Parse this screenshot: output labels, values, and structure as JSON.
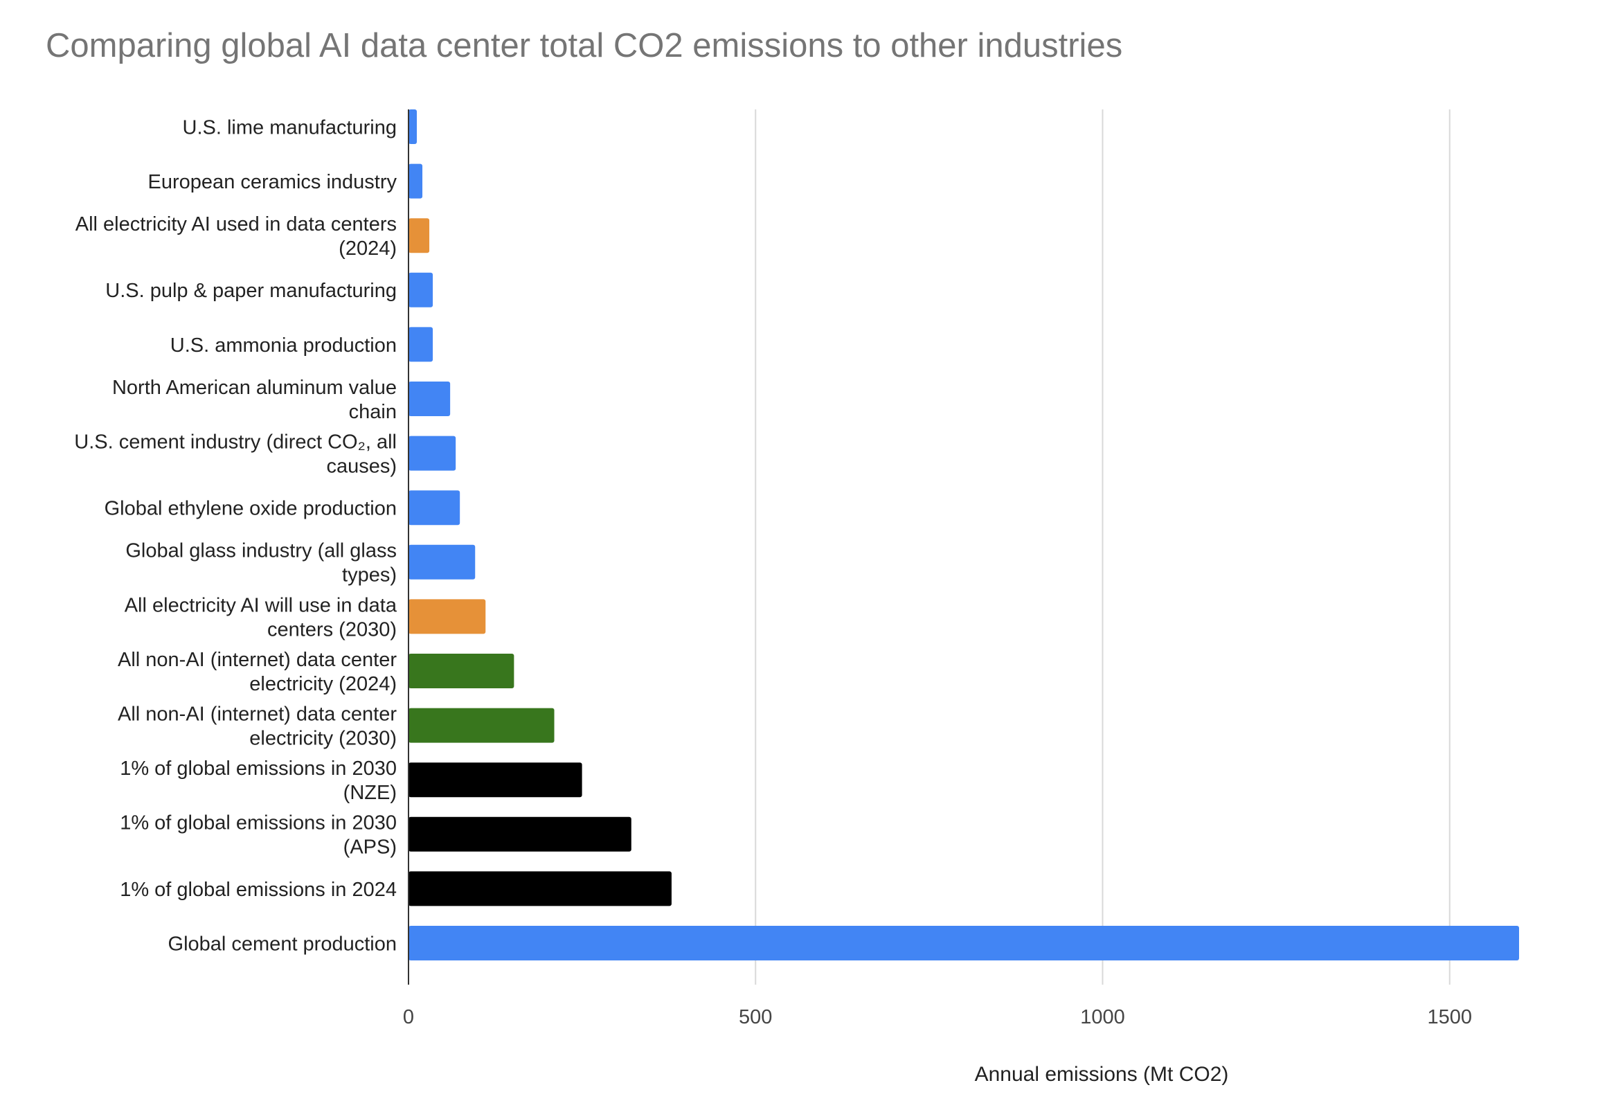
{
  "chart_data": {
    "type": "bar",
    "orientation": "horizontal",
    "title": "Comparing global AI data center total CO2 emissions to other industries",
    "xlabel": "Annual emissions (Mt CO2)",
    "ylabel": "",
    "xlim": [
      0,
      1600
    ],
    "xticks": [
      0,
      500,
      1000,
      1500
    ],
    "grid": true,
    "legend": "none",
    "categories": [
      [
        "U.S. lime manufacturing"
      ],
      [
        "European ceramics industry"
      ],
      [
        "All electricity AI used in data centers",
        "(2024)"
      ],
      [
        "U.S. pulp & paper manufacturing"
      ],
      [
        "U.S. ammonia production"
      ],
      [
        "North American aluminum value",
        "chain"
      ],
      [
        "U.S. cement industry (direct CO₂, all",
        "causes)"
      ],
      [
        "Global ethylene oxide production"
      ],
      [
        "Global glass industry (all glass",
        "types)"
      ],
      [
        "All electricity AI will use in data",
        "centers (2030)"
      ],
      [
        "All non-AI (internet) data center",
        "electricity (2024)"
      ],
      [
        "All non-AI (internet) data center",
        "electricity (2030)"
      ],
      [
        "1% of global emissions in 2030",
        "(NZE)"
      ],
      [
        "1% of global emissions in 2030",
        "(APS)"
      ],
      [
        "1% of global emissions in 2024"
      ],
      [
        "Global cement production"
      ]
    ],
    "values": [
      12,
      20,
      30,
      35,
      35,
      60,
      68,
      74,
      96,
      111,
      152,
      210,
      250,
      321,
      379,
      1600
    ],
    "colors": [
      "#4285f4",
      "#4285f4",
      "#e69138",
      "#4285f4",
      "#4285f4",
      "#4285f4",
      "#4285f4",
      "#4285f4",
      "#4285f4",
      "#e69138",
      "#38761d",
      "#38761d",
      "#000000",
      "#000000",
      "#000000",
      "#4285f4"
    ]
  }
}
